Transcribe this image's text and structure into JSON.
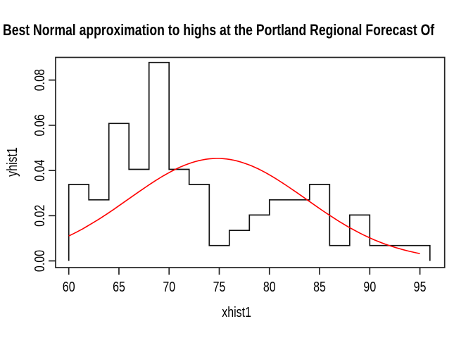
{
  "chart_data": {
    "type": "bar",
    "subtype": "density-histogram-step-outline-with-normal-curve",
    "title": "Best Normal approximation to highs at the Portland Regional Forecast Of",
    "xlabel": "xhist1",
    "ylabel": "yhist1",
    "bins": {
      "start": 60,
      "width": 2,
      "edges": [
        60,
        62,
        64,
        66,
        68,
        70,
        72,
        74,
        76,
        78,
        80,
        82,
        84,
        86,
        88,
        90,
        92,
        94,
        96
      ]
    },
    "densities": [
      0.0338,
      0.027,
      0.0608,
      0.0405,
      0.0878,
      0.0405,
      0.0338,
      0.0068,
      0.0135,
      0.0203,
      0.027,
      0.027,
      0.0338,
      0.0068,
      0.0203,
      0.0068,
      0.0068,
      0.0068
    ],
    "normal_curve": {
      "mean": 74.8,
      "sd": 8.8,
      "x_from": 60,
      "x_to": 95,
      "peak_density": 0.0453
    },
    "x_ticks": [
      60,
      65,
      70,
      75,
      80,
      85,
      90,
      95
    ],
    "y_ticks": [
      {
        "label": "0.00",
        "value": 0.0
      },
      {
        "label": "0.02",
        "value": 0.02
      },
      {
        "label": "0.04",
        "value": 0.04
      },
      {
        "label": "0.06",
        "value": 0.06
      },
      {
        "label": "0.08",
        "value": 0.08
      }
    ],
    "xlim": [
      58.6,
      97.4
    ],
    "ylim": [
      -0.0026,
      0.0906
    ],
    "grid": false,
    "legend": false,
    "colors": {
      "histogram_line": "#111111",
      "curve": "#ff0000",
      "axis": "#222222",
      "text": "#000000",
      "background": "#ffffff"
    }
  }
}
